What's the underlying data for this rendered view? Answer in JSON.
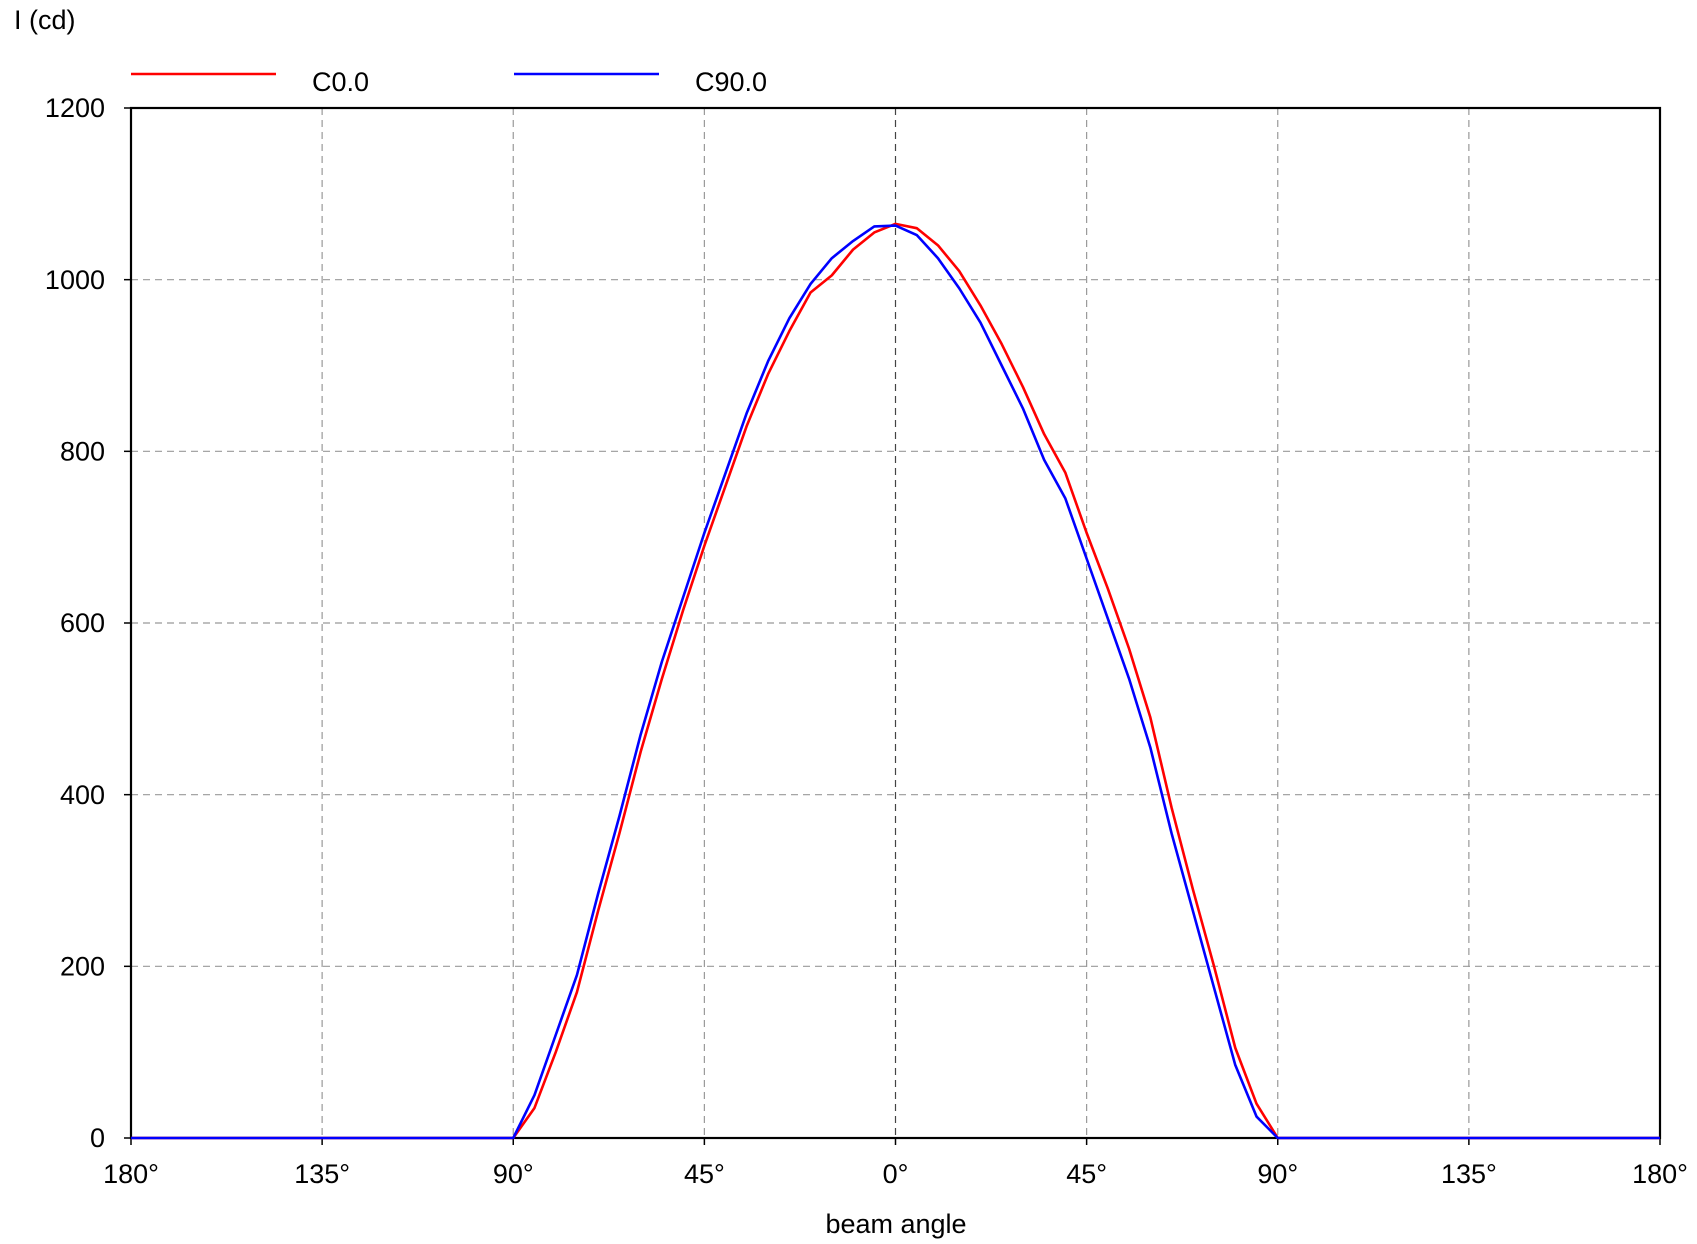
{
  "chart_data": {
    "type": "line",
    "y_label": "I (cd)",
    "x_label": "beam angle",
    "x": [
      -180,
      -90,
      -85,
      -80,
      -75,
      -70,
      -65,
      -60,
      -55,
      -50,
      -45,
      -40,
      -35,
      -30,
      -25,
      -20,
      -15,
      -10,
      -5,
      0,
      5,
      10,
      15,
      20,
      25,
      30,
      35,
      40,
      45,
      50,
      55,
      60,
      65,
      70,
      75,
      80,
      85,
      90,
      180
    ],
    "series": [
      {
        "name": "C0.0",
        "color": "#ff0000",
        "values": [
          0,
          0,
          35,
          100,
          170,
          265,
          355,
          450,
          535,
          615,
          690,
          760,
          830,
          890,
          940,
          985,
          1005,
          1035,
          1055,
          1065,
          1060,
          1040,
          1010,
          970,
          925,
          875,
          820,
          775,
          705,
          640,
          570,
          490,
          385,
          290,
          200,
          105,
          40,
          0,
          0
        ]
      },
      {
        "name": "C90.0",
        "color": "#0000ff",
        "values": [
          0,
          0,
          50,
          120,
          190,
          285,
          375,
          470,
          555,
          630,
          705,
          775,
          845,
          905,
          955,
          995,
          1025,
          1045,
          1062,
          1063,
          1052,
          1025,
          990,
          950,
          900,
          850,
          790,
          745,
          675,
          605,
          535,
          455,
          355,
          265,
          175,
          85,
          25,
          0,
          0
        ]
      }
    ],
    "xlim": [
      -180,
      180
    ],
    "xticks": [
      {
        "value": -180,
        "label": "180°"
      },
      {
        "value": -135,
        "label": "135°"
      },
      {
        "value": -90,
        "label": "90°"
      },
      {
        "value": -45,
        "label": "45°"
      },
      {
        "value": 0,
        "label": "0°"
      },
      {
        "value": 45,
        "label": "45°"
      },
      {
        "value": 90,
        "label": "90°"
      },
      {
        "value": 135,
        "label": "135°"
      },
      {
        "value": 180,
        "label": "180°"
      }
    ],
    "ylim": [
      0,
      1200
    ],
    "yticks": [
      0,
      200,
      400,
      600,
      800,
      1000,
      1200
    ],
    "grid": true
  }
}
